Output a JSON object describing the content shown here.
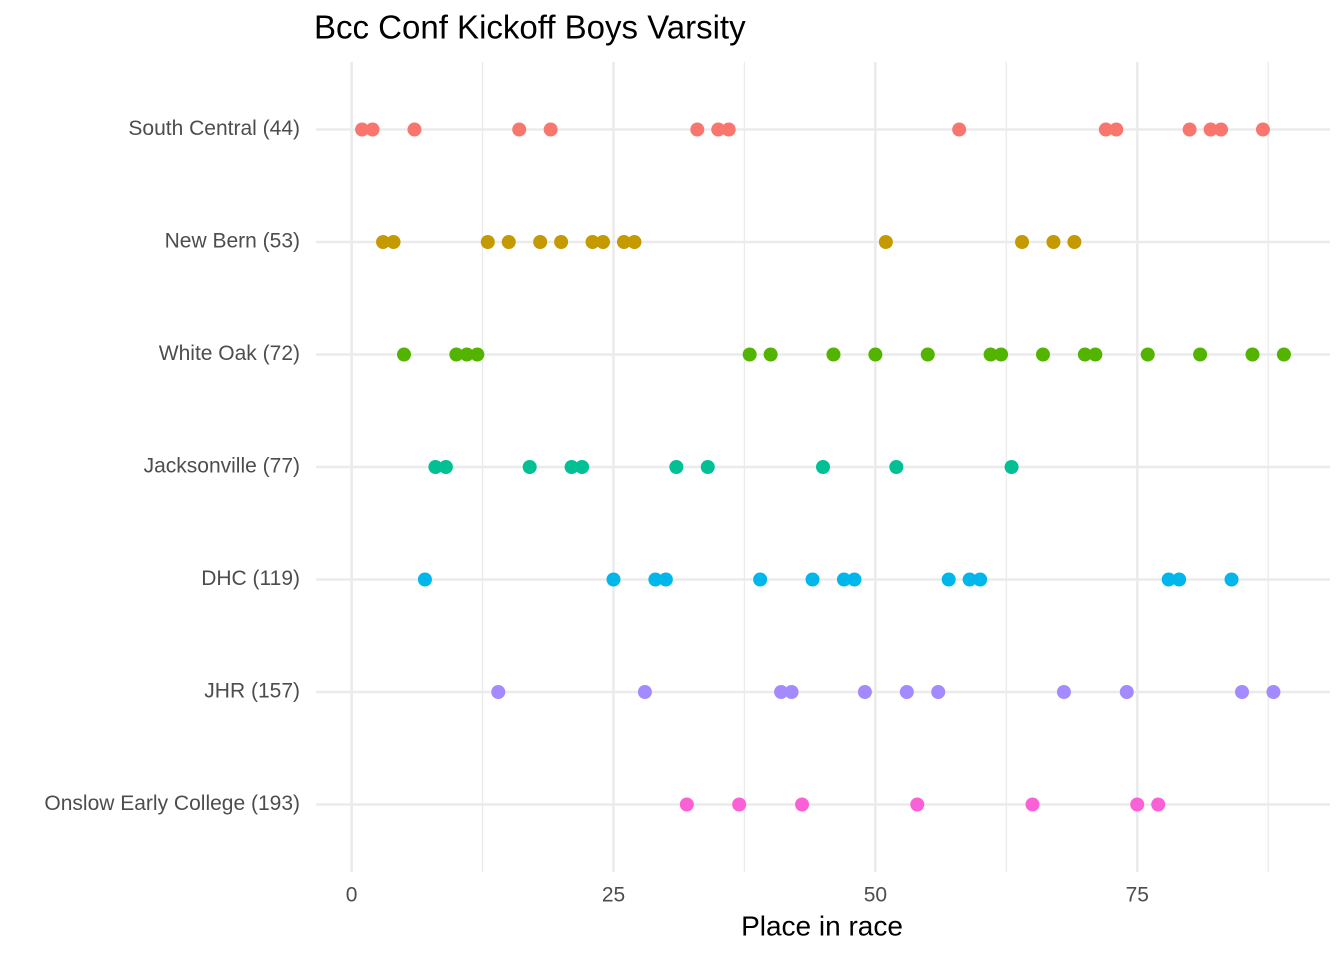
{
  "chart_data": {
    "type": "dotplot",
    "title": "Bcc Conf Kickoff Boys Varsity",
    "x_label": "Place in race",
    "xlim": [
      -3.4,
      93.4
    ],
    "xticks": [
      0,
      25,
      50,
      75
    ],
    "minor_xticks": [
      12.5,
      37.5,
      62.5,
      87.5
    ],
    "grid": true,
    "series": [
      {
        "name": "South Central (44)",
        "color": "#F8766D",
        "values": [
          1,
          2,
          6,
          16,
          19,
          33,
          35,
          36,
          58,
          72,
          73,
          80,
          82,
          83,
          87
        ]
      },
      {
        "name": "New Bern (53)",
        "color": "#C49A00",
        "values": [
          3,
          4,
          13,
          15,
          18,
          20,
          23,
          24,
          26,
          27,
          51,
          64,
          67,
          69
        ]
      },
      {
        "name": "White Oak (72)",
        "color": "#53B400",
        "values": [
          5,
          10,
          11,
          12,
          38,
          40,
          46,
          50,
          55,
          61,
          62,
          66,
          70,
          71,
          76,
          81,
          86,
          89
        ]
      },
      {
        "name": "Jacksonville (77)",
        "color": "#00C094",
        "values": [
          8,
          9,
          17,
          21,
          22,
          31,
          34,
          45,
          52,
          63
        ]
      },
      {
        "name": "DHC (119)",
        "color": "#00B6EB",
        "values": [
          7,
          25,
          29,
          30,
          39,
          44,
          47,
          48,
          57,
          59,
          60,
          78,
          79,
          84
        ]
      },
      {
        "name": "JHR (157)",
        "color": "#A58AFF",
        "values": [
          14,
          28,
          41,
          42,
          49,
          53,
          56,
          68,
          74,
          85,
          88
        ]
      },
      {
        "name": "Onslow Early College (193)",
        "color": "#FB61D7",
        "values": [
          32,
          37,
          43,
          54,
          65,
          75,
          77
        ]
      }
    ]
  }
}
